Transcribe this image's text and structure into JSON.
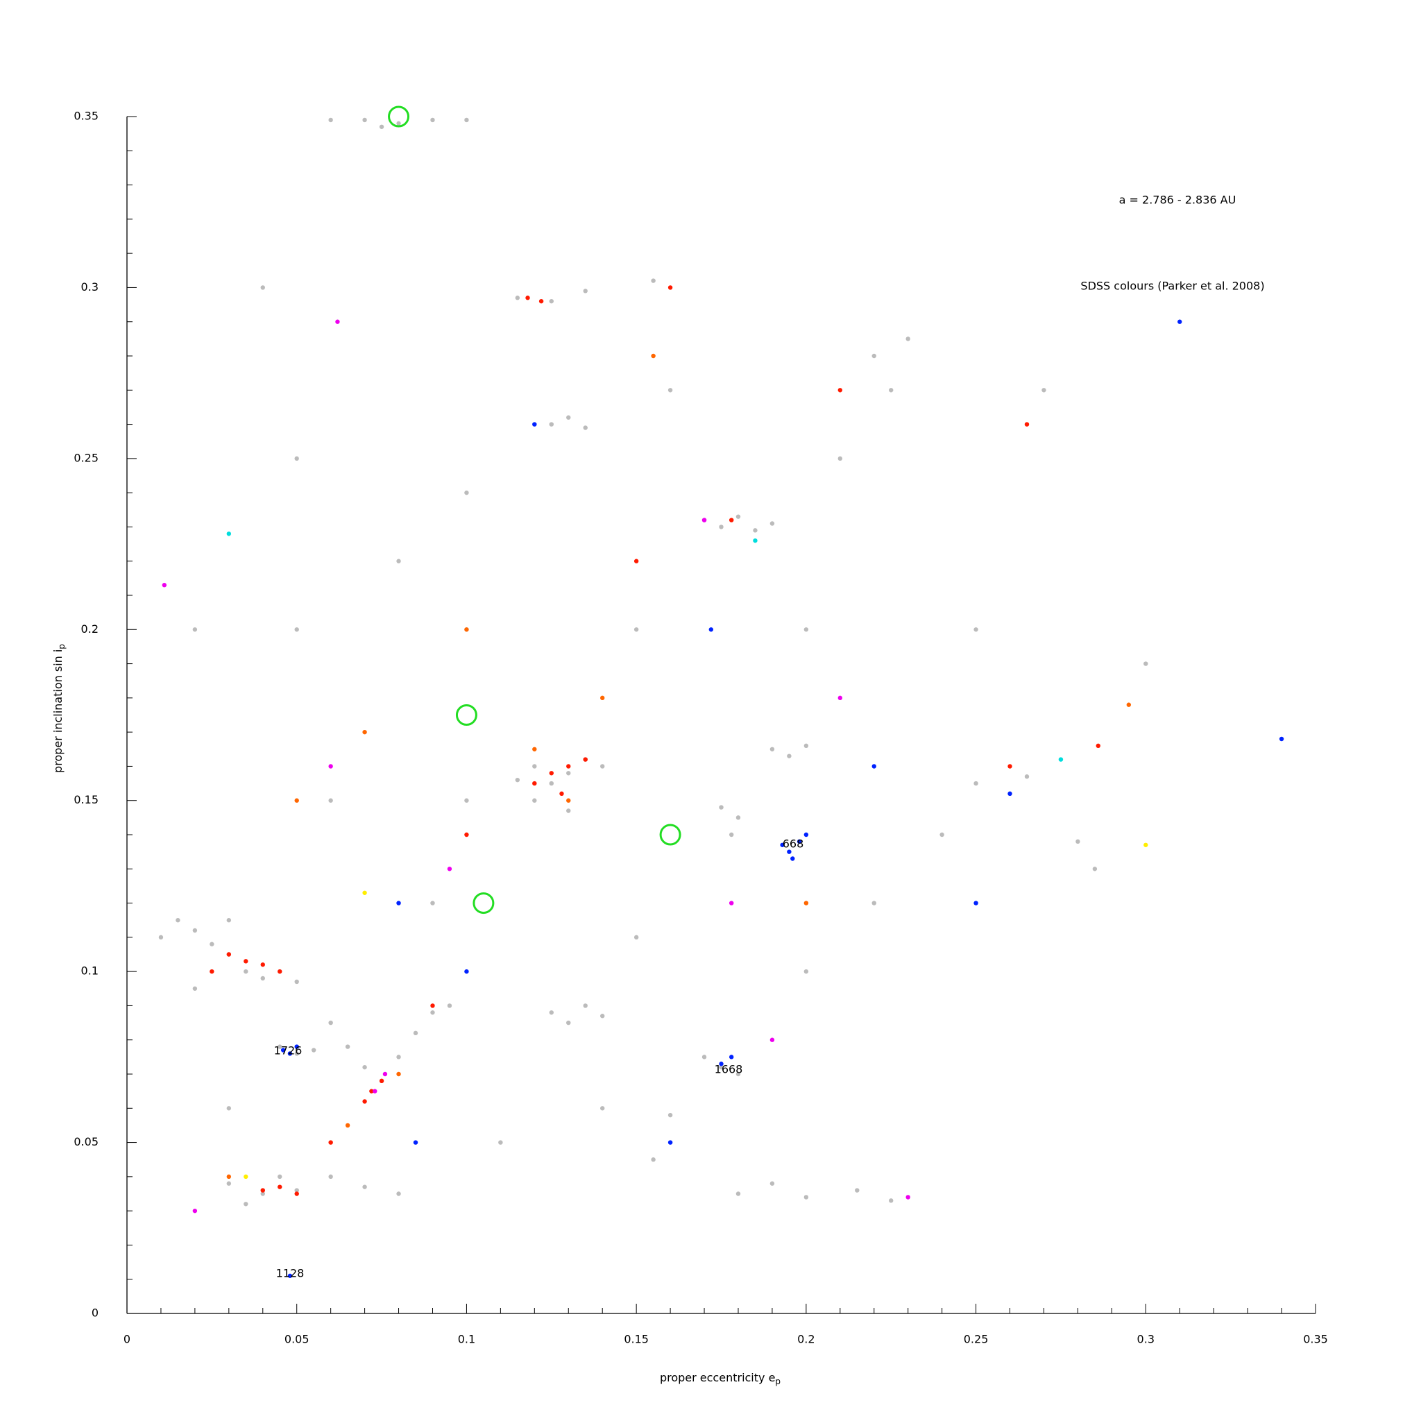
{
  "chart_data": {
    "type": "scatter",
    "xlabel": "proper eccentricity e",
    "xlabel_sub": "p",
    "ylabel": "proper inclination sin i",
    "ylabel_sub": "p",
    "annotations": [
      "a = 2.786 - 2.836 AU",
      "SDSS colours (Parker et al. 2008)",
      "1726",
      "1668",
      "1128",
      "668"
    ],
    "xlim": [
      0,
      0.35
    ],
    "ylim": [
      0,
      0.35
    ],
    "xticks": [
      0,
      0.05,
      0.1,
      0.15,
      0.2,
      0.25,
      0.3,
      0.35
    ],
    "yticks": [
      0,
      0.05,
      0.1,
      0.15,
      0.2,
      0.25,
      0.3,
      0.35
    ],
    "xminorticks": [
      0.01,
      0.02,
      0.03,
      0.04,
      0.06,
      0.07,
      0.08,
      0.09,
      0.11,
      0.12,
      0.13,
      0.14,
      0.16,
      0.17,
      0.18,
      0.19,
      0.21,
      0.22,
      0.23,
      0.24,
      0.26,
      0.27,
      0.28,
      0.29,
      0.31,
      0.32,
      0.33,
      0.34
    ],
    "yminorticks": [
      0.01,
      0.02,
      0.03,
      0.04,
      0.06,
      0.07,
      0.08,
      0.09,
      0.11,
      0.12,
      0.13,
      0.14,
      0.16,
      0.17,
      0.18,
      0.19,
      0.21,
      0.22,
      0.23,
      0.24,
      0.26,
      0.27,
      0.28,
      0.29,
      0.31,
      0.32,
      0.33,
      0.34
    ],
    "series": [
      {
        "color": "#bbbbbb",
        "marker": "dot",
        "x": [
          0.06,
          0.07,
          0.08,
          0.09,
          0.1,
          0.075,
          0.115,
          0.125,
          0.135,
          0.155,
          0.125,
          0.13,
          0.135,
          0.17,
          0.175,
          0.18,
          0.185,
          0.19,
          0.22,
          0.23,
          0.225,
          0.015,
          0.02,
          0.025,
          0.03,
          0.035,
          0.04,
          0.045,
          0.05,
          0.01,
          0.03,
          0.02,
          0.06,
          0.065,
          0.07,
          0.08,
          0.085,
          0.09,
          0.095,
          0.075,
          0.03,
          0.04,
          0.05,
          0.06,
          0.07,
          0.08,
          0.045,
          0.035,
          0.045,
          0.05,
          0.055,
          0.12,
          0.125,
          0.13,
          0.135,
          0.14,
          0.12,
          0.115,
          0.13,
          0.125,
          0.13,
          0.135,
          0.14,
          0.175,
          0.18,
          0.178,
          0.19,
          0.195,
          0.2,
          0.17,
          0.175,
          0.18,
          0.25,
          0.26,
          0.265,
          0.28,
          0.285,
          0.18,
          0.19,
          0.2,
          0.215,
          0.225,
          0.155,
          0.16,
          0.1,
          0.15,
          0.2,
          0.08,
          0.1,
          0.05,
          0.06,
          0.1,
          0.09,
          0.2,
          0.22,
          0.24,
          0.15,
          0.11,
          0.14,
          0.03,
          0.02,
          0.05,
          0.16,
          0.21,
          0.25,
          0.3,
          0.27,
          0.04
        ],
        "y": [
          0.349,
          0.349,
          0.348,
          0.349,
          0.349,
          0.347,
          0.297,
          0.296,
          0.299,
          0.302,
          0.26,
          0.262,
          0.259,
          0.232,
          0.23,
          0.233,
          0.229,
          0.231,
          0.28,
          0.285,
          0.27,
          0.115,
          0.112,
          0.108,
          0.105,
          0.1,
          0.098,
          0.1,
          0.097,
          0.11,
          0.115,
          0.095,
          0.085,
          0.078,
          0.072,
          0.075,
          0.082,
          0.088,
          0.09,
          0.068,
          0.038,
          0.035,
          0.036,
          0.04,
          0.037,
          0.035,
          0.04,
          0.032,
          0.078,
          0.076,
          0.077,
          0.16,
          0.155,
          0.158,
          0.162,
          0.16,
          0.15,
          0.156,
          0.147,
          0.088,
          0.085,
          0.09,
          0.087,
          0.148,
          0.145,
          0.14,
          0.165,
          0.163,
          0.166,
          0.075,
          0.072,
          0.07,
          0.155,
          0.152,
          0.157,
          0.138,
          0.13,
          0.035,
          0.038,
          0.034,
          0.036,
          0.033,
          0.045,
          0.058,
          0.2,
          0.2,
          0.2,
          0.22,
          0.24,
          0.2,
          0.15,
          0.15,
          0.12,
          0.1,
          0.12,
          0.14,
          0.11,
          0.05,
          0.06,
          0.06,
          0.2,
          0.25,
          0.27,
          0.25,
          0.2,
          0.19,
          0.27,
          0.3
        ]
      },
      {
        "color": "#ff1a00",
        "marker": "dot",
        "x": [
          0.125,
          0.13,
          0.135,
          0.12,
          0.128,
          0.03,
          0.035,
          0.04,
          0.045,
          0.072,
          0.075,
          0.07,
          0.04,
          0.045,
          0.05,
          0.118,
          0.122,
          0.178,
          0.06,
          0.1,
          0.15,
          0.21,
          0.26,
          0.16,
          0.025,
          0.09,
          0.286,
          0.265
        ],
        "y": [
          0.158,
          0.16,
          0.162,
          0.155,
          0.152,
          0.105,
          0.103,
          0.102,
          0.1,
          0.065,
          0.068,
          0.062,
          0.036,
          0.037,
          0.035,
          0.297,
          0.296,
          0.232,
          0.05,
          0.14,
          0.22,
          0.27,
          0.16,
          0.3,
          0.1,
          0.09,
          0.166,
          0.26
        ]
      },
      {
        "color": "#ff6600",
        "marker": "dot",
        "x": [
          0.13,
          0.12,
          0.065,
          0.08,
          0.03,
          0.1,
          0.07,
          0.14,
          0.155,
          0.295,
          0.2,
          0.05
        ],
        "y": [
          0.15,
          0.165,
          0.055,
          0.07,
          0.04,
          0.2,
          0.17,
          0.18,
          0.28,
          0.178,
          0.12,
          0.15
        ]
      },
      {
        "color": "#0022ff",
        "marker": "dot",
        "x": [
          0.193,
          0.195,
          0.198,
          0.196,
          0.2,
          0.046,
          0.048,
          0.05,
          0.175,
          0.178,
          0.048,
          0.26,
          0.31,
          0.34,
          0.16,
          0.1,
          0.22,
          0.12,
          0.08,
          0.25,
          0.172,
          0.085
        ],
        "y": [
          0.137,
          0.135,
          0.138,
          0.133,
          0.14,
          0.077,
          0.076,
          0.078,
          0.073,
          0.075,
          0.011,
          0.152,
          0.29,
          0.168,
          0.05,
          0.1,
          0.16,
          0.26,
          0.12,
          0.12,
          0.2,
          0.05
        ]
      },
      {
        "color": "#ee00ee",
        "marker": "dot",
        "x": [
          0.073,
          0.076,
          0.02,
          0.062,
          0.06,
          0.19,
          0.21,
          0.095,
          0.23,
          0.178,
          0.011,
          0.17
        ],
        "y": [
          0.065,
          0.07,
          0.03,
          0.29,
          0.16,
          0.08,
          0.18,
          0.13,
          0.034,
          0.12,
          0.213,
          0.232
        ]
      },
      {
        "color": "#ffee00",
        "marker": "dot",
        "x": [
          0.07,
          0.035,
          0.3
        ],
        "y": [
          0.123,
          0.04,
          0.137
        ]
      },
      {
        "color": "#00dddd",
        "marker": "dot",
        "x": [
          0.275,
          0.03,
          0.185
        ],
        "y": [
          0.162,
          0.228,
          0.226
        ]
      },
      {
        "color": "#22dd22",
        "marker": "ring",
        "x": [
          0.08,
          0.1,
          0.16,
          0.105
        ],
        "y": [
          0.35,
          0.175,
          0.14,
          0.12
        ]
      }
    ]
  }
}
